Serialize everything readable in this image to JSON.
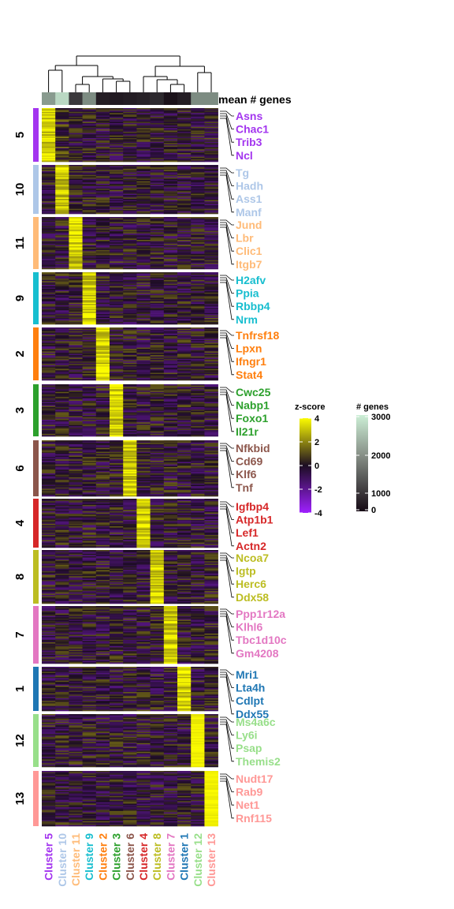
{
  "chart_data": {
    "type": "heatmap",
    "columns": [
      "Cluster 5",
      "Cluster 10",
      "Cluster 11",
      "Cluster 9",
      "Cluster 2",
      "Cluster 3",
      "Cluster 6",
      "Cluster 4",
      "Cluster 8",
      "Cluster 7",
      "Cluster 1",
      "Cluster 12",
      "Cluster 13"
    ],
    "column_colors": [
      "#a335ef",
      "#aec7e8",
      "#ffbb78",
      "#17becf",
      "#ff7f0e",
      "#2ca02c",
      "#8c564b",
      "#d62728",
      "#bcbd22",
      "#e377c2",
      "#1f77b4",
      "#98df8a",
      "#ff9896"
    ],
    "mean_genes_label": "mean # genes",
    "mean_genes_values": [
      1900,
      2700,
      600,
      1700,
      250,
      200,
      250,
      300,
      400,
      100,
      250,
      1700,
      1700
    ],
    "row_blocks": [
      {
        "label": "5",
        "color": "#a335ef",
        "column": 0,
        "genes": [
          "Asns",
          "Chac1",
          "Trib3",
          "Ncl"
        ]
      },
      {
        "label": "10",
        "color": "#aec7e8",
        "column": 1,
        "genes": [
          "Tg",
          "Hadh",
          "Ass1",
          "Manf"
        ]
      },
      {
        "label": "11",
        "color": "#ffbb78",
        "column": 2,
        "genes": [
          "Jund",
          "Lbr",
          "Clic1",
          "Itgb7"
        ]
      },
      {
        "label": "9",
        "color": "#17becf",
        "column": 3,
        "genes": [
          "H2afv",
          "Ppia",
          "Rbbp4",
          "Nrm"
        ]
      },
      {
        "label": "2",
        "color": "#ff7f0e",
        "column": 4,
        "genes": [
          "Tnfrsf18",
          "Lpxn",
          "Ifngr1",
          "Stat4"
        ]
      },
      {
        "label": "3",
        "color": "#2ca02c",
        "column": 5,
        "genes": [
          "Cwc25",
          "Nabp1",
          "Foxo1",
          "Il21r"
        ]
      },
      {
        "label": "6",
        "color": "#8c564b",
        "column": 6,
        "genes": [
          "Nfkbid",
          "Cd69",
          "Klf6",
          "Tnf"
        ]
      },
      {
        "label": "4",
        "color": "#d62728",
        "column": 7,
        "genes": [
          "Igfbp4",
          "Atp1b1",
          "Lef1",
          "Actn2"
        ]
      },
      {
        "label": "8",
        "color": "#bcbd22",
        "column": 8,
        "genes": [
          "Ncoa7",
          "Igtp",
          "Herc6",
          "Ddx58"
        ]
      },
      {
        "label": "7",
        "color": "#e377c2",
        "column": 9,
        "genes": [
          "Ppp1r12a",
          "Klhl6",
          "Tbc1d10c",
          "Gm4208"
        ]
      },
      {
        "label": "1",
        "color": "#1f77b4",
        "column": 10,
        "genes": [
          "Mri1",
          "Lta4h",
          "Cdlpt",
          "Ddx55"
        ]
      },
      {
        "label": "12",
        "color": "#98df8a",
        "column": 11,
        "genes": [
          "Ms4a6c",
          "Ly6i",
          "Psap",
          "Themis2"
        ]
      },
      {
        "label": "13",
        "color": "#ff9896",
        "column": 12,
        "genes": [
          "Nudt17",
          "Rab9",
          "Net1",
          "Rnf115"
        ]
      }
    ],
    "zscore_legend": {
      "title": "z-score",
      "ticks": [
        "4",
        "2",
        "0",
        "-2",
        "-4"
      ],
      "range": [
        -4,
        4
      ],
      "colors": [
        "#9f20ff",
        "#1c0d22",
        "#fcfc00"
      ]
    },
    "genes_legend": {
      "title": "# genes",
      "ticks": [
        "3000",
        "2000",
        "1000",
        "0"
      ],
      "range": [
        0,
        3000
      ],
      "colors": [
        "#150a14",
        "#ccefd6"
      ]
    }
  }
}
